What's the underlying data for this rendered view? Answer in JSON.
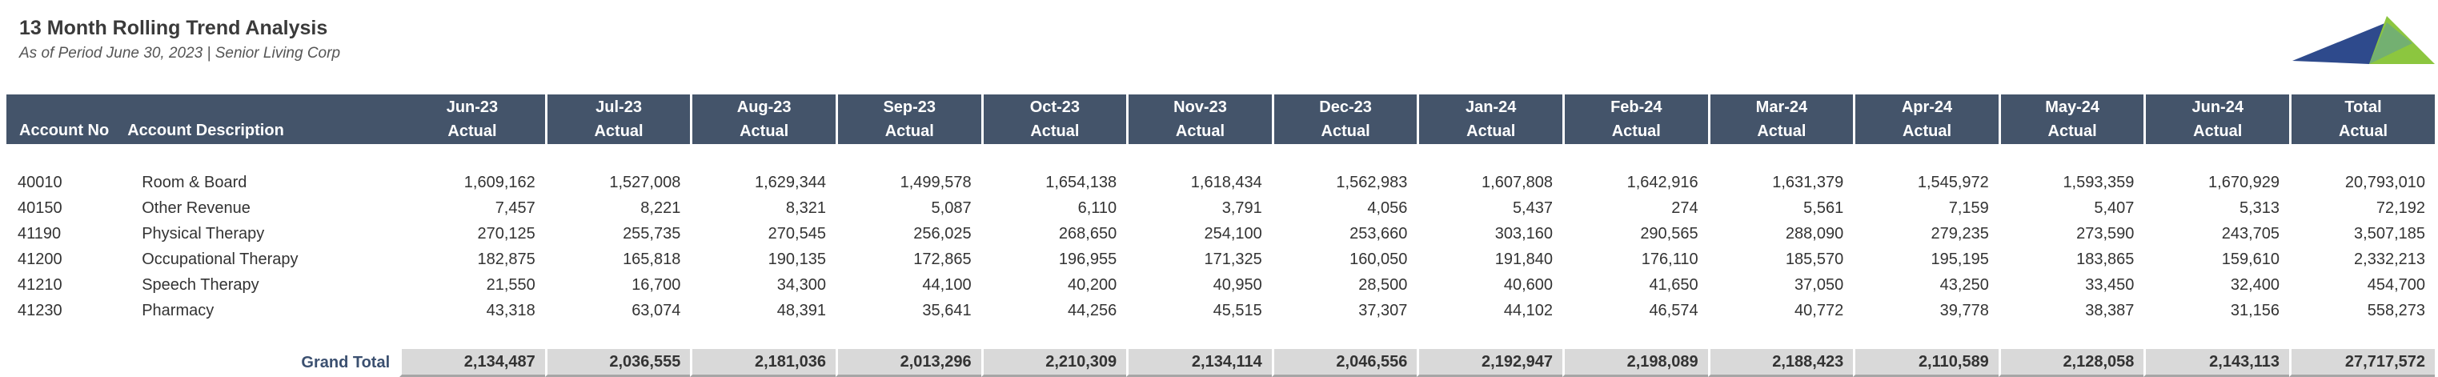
{
  "report": {
    "title": "13 Month Rolling Trend Analysis",
    "subtitle": "As of Period June 30, 2023 | Senior Living Corp"
  },
  "logo": {
    "icon": "triangles-logo-icon",
    "colors": [
      "#2e4a8c",
      "#8cc63f"
    ]
  },
  "table": {
    "header_bg": "#44546a",
    "headers": {
      "account_no": "Account No",
      "account_desc": "Account Description",
      "columns": [
        {
          "period": "Jun-23",
          "type": "Actual"
        },
        {
          "period": "Jul-23",
          "type": "Actual"
        },
        {
          "period": "Aug-23",
          "type": "Actual"
        },
        {
          "period": "Sep-23",
          "type": "Actual"
        },
        {
          "period": "Oct-23",
          "type": "Actual"
        },
        {
          "period": "Nov-23",
          "type": "Actual"
        },
        {
          "period": "Dec-23",
          "type": "Actual"
        },
        {
          "period": "Jan-24",
          "type": "Actual"
        },
        {
          "period": "Feb-24",
          "type": "Actual"
        },
        {
          "period": "Mar-24",
          "type": "Actual"
        },
        {
          "period": "Apr-24",
          "type": "Actual"
        },
        {
          "period": "May-24",
          "type": "Actual"
        },
        {
          "period": "Jun-24",
          "type": "Actual"
        },
        {
          "period": "Total",
          "type": "Actual"
        }
      ]
    },
    "rows": [
      {
        "acct": "40010",
        "desc": "Room & Board",
        "values": [
          "1,609,162",
          "1,527,008",
          "1,629,344",
          "1,499,578",
          "1,654,138",
          "1,618,434",
          "1,562,983",
          "1,607,808",
          "1,642,916",
          "1,631,379",
          "1,545,972",
          "1,593,359",
          "1,670,929",
          "20,793,010"
        ]
      },
      {
        "acct": "40150",
        "desc": "Other Revenue",
        "values": [
          "7,457",
          "8,221",
          "8,321",
          "5,087",
          "6,110",
          "3,791",
          "4,056",
          "5,437",
          "274",
          "5,561",
          "7,159",
          "5,407",
          "5,313",
          "72,192"
        ]
      },
      {
        "acct": "41190",
        "desc": "Physical Therapy",
        "values": [
          "270,125",
          "255,735",
          "270,545",
          "256,025",
          "268,650",
          "254,100",
          "253,660",
          "303,160",
          "290,565",
          "288,090",
          "279,235",
          "273,590",
          "243,705",
          "3,507,185"
        ]
      },
      {
        "acct": "41200",
        "desc": "Occupational Therapy",
        "values": [
          "182,875",
          "165,818",
          "190,135",
          "172,865",
          "196,955",
          "171,325",
          "160,050",
          "191,840",
          "176,110",
          "185,570",
          "195,195",
          "183,865",
          "159,610",
          "2,332,213"
        ]
      },
      {
        "acct": "41210",
        "desc": "Speech Therapy",
        "values": [
          "21,550",
          "16,700",
          "34,300",
          "44,100",
          "40,200",
          "40,950",
          "28,500",
          "40,600",
          "41,650",
          "37,050",
          "43,250",
          "33,450",
          "32,400",
          "454,700"
        ]
      },
      {
        "acct": "41230",
        "desc": "Pharmacy",
        "values": [
          "43,318",
          "63,074",
          "48,391",
          "35,641",
          "44,256",
          "45,515",
          "37,307",
          "44,102",
          "46,574",
          "40,772",
          "39,778",
          "38,387",
          "31,156",
          "558,273"
        ]
      }
    ],
    "grand_total": {
      "label": "Grand Total",
      "values": [
        "2,134,487",
        "2,036,555",
        "2,181,036",
        "2,013,296",
        "2,210,309",
        "2,134,114",
        "2,046,556",
        "2,192,947",
        "2,198,089",
        "2,188,423",
        "2,110,589",
        "2,128,058",
        "2,143,113",
        "27,717,572"
      ]
    }
  }
}
